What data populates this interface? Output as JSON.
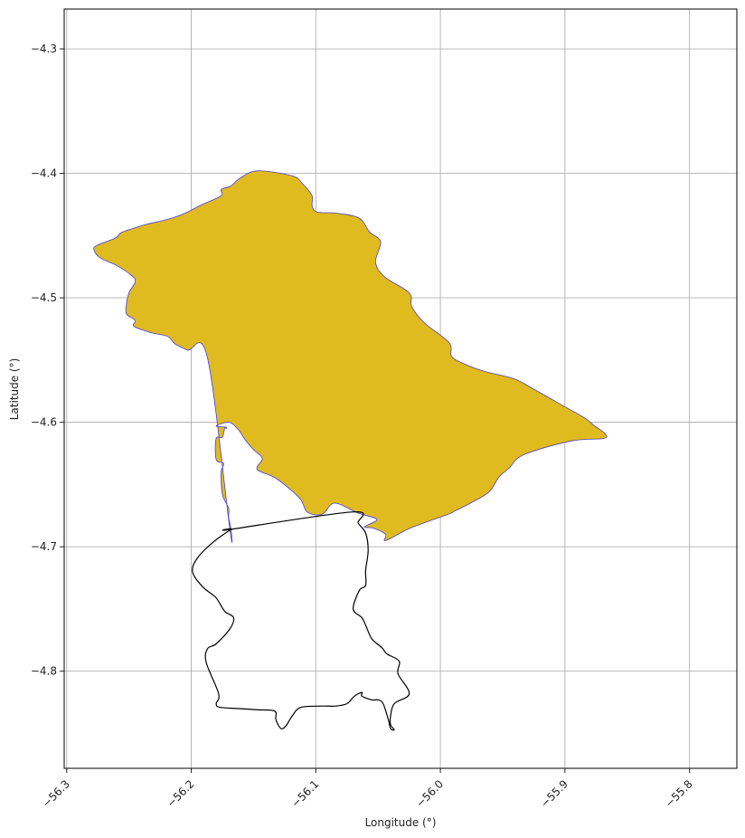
{
  "chart_data": {
    "type": "map",
    "xlabel": "Longitude (°)",
    "ylabel": "Latitude (°)",
    "xlim": [
      -56.302,
      -55.762
    ],
    "ylim": [
      -4.878,
      -4.268
    ],
    "x_ticks": [
      -56.3,
      -56.2,
      -56.1,
      -56.0,
      -55.9,
      -55.8
    ],
    "x_tick_labels": [
      "−56.3",
      "−56.2",
      "−56.1",
      "−56.0",
      "−55.9",
      "−55.8"
    ],
    "y_ticks": [
      -4.3,
      -4.4,
      -4.5,
      -4.6,
      -4.7,
      -4.8
    ],
    "y_tick_labels": [
      "−4.3",
      "−4.4",
      "−4.5",
      "−4.6",
      "−4.7",
      "−4.8"
    ],
    "grid": true,
    "colors": {
      "fill": "#dfbb1f",
      "fill_edge": "#4a3fd0",
      "outline": "#000000"
    },
    "filled_region": {
      "lon": [
        -56.168,
        -56.17,
        -56.17,
        -56.175,
        -56.176,
        -56.174,
        -56.18,
        -56.18,
        -56.175,
        -56.173,
        -56.172,
        -56.172,
        -56.18,
        -56.17,
        -56.163,
        -56.156,
        -56.15,
        -56.143,
        -56.147,
        -56.132,
        -56.113,
        -56.107,
        -56.095,
        -56.085,
        -56.066,
        -56.051,
        -56.061,
        -56.054,
        -56.044,
        -56.044,
        -56.024,
        -55.994,
        -55.988,
        -55.976,
        -55.961,
        -55.953,
        -55.945,
        -55.933,
        -55.895,
        -55.869,
        -55.868,
        -55.876,
        -55.885,
        -55.901,
        -55.924,
        -55.941,
        -55.965,
        -55.981,
        -55.991,
        -55.993,
        -56.013,
        -56.023,
        -56.025,
        -56.045,
        -56.052,
        -56.048,
        -56.057,
        -56.065,
        -56.083,
        -56.099,
        -56.103,
        -56.103,
        -56.111,
        -56.119,
        -56.147,
        -56.161,
        -56.168,
        -56.176,
        -56.176,
        -56.191,
        -56.205,
        -56.219,
        -56.236,
        -56.252,
        -56.257,
        -56.261,
        -56.276,
        -56.278,
        -56.273,
        -56.26,
        -56.248,
        -56.245,
        -56.25,
        -56.252,
        -56.252,
        -56.245,
        -56.246,
        -56.232,
        -56.219,
        -56.213,
        -56.203,
        -56.187,
        -56.169
      ],
      "lat": [
        -4.686,
        -4.676,
        -4.669,
        -4.658,
        -4.64,
        -4.633,
        -4.63,
        -4.613,
        -4.612,
        -4.604,
        -4.605,
        -4.604,
        -4.603,
        -4.6,
        -4.605,
        -4.615,
        -4.622,
        -4.629,
        -4.638,
        -4.645,
        -4.661,
        -4.672,
        -4.674,
        -4.665,
        -4.673,
        -4.678,
        -4.684,
        -4.685,
        -4.69,
        -4.695,
        -4.685,
        -4.674,
        -4.671,
        -4.665,
        -4.656,
        -4.644,
        -4.637,
        -4.626,
        -4.615,
        -4.613,
        -4.609,
        -4.603,
        -4.596,
        -4.587,
        -4.574,
        -4.565,
        -4.559,
        -4.553,
        -4.547,
        -4.536,
        -4.52,
        -4.507,
        -4.496,
        -4.483,
        -4.471,
        -4.455,
        -4.447,
        -4.436,
        -4.432,
        -4.431,
        -4.426,
        -4.418,
        -4.408,
        -4.402,
        -4.398,
        -4.404,
        -4.41,
        -4.413,
        -4.418,
        -4.425,
        -4.432,
        -4.437,
        -4.441,
        -4.446,
        -4.448,
        -4.452,
        -4.458,
        -4.462,
        -4.468,
        -4.474,
        -4.482,
        -4.487,
        -4.496,
        -4.505,
        -4.513,
        -4.518,
        -4.523,
        -4.528,
        -4.531,
        -4.537,
        -4.542,
        -4.548,
        -4.686
      ]
    },
    "outline_region": {
      "lon": [
        -56.168,
        -56.07,
        -56.066,
        -56.06,
        -56.058,
        -56.06,
        -56.06,
        -56.065,
        -56.07,
        -56.063,
        -56.06,
        -56.055,
        -56.047,
        -56.043,
        -56.033,
        -56.034,
        -56.025,
        -56.037,
        -56.04,
        -56.04,
        -56.037,
        -56.04,
        -56.042,
        -56.046,
        -56.05,
        -56.055,
        -56.063,
        -56.063,
        -56.069,
        -56.075,
        -56.084,
        -56.095,
        -56.112,
        -56.119,
        -56.124,
        -56.128,
        -56.132,
        -56.133,
        -56.146,
        -56.162,
        -56.177,
        -56.18,
        -56.178,
        -56.188,
        -56.187,
        -56.18,
        -56.169,
        -56.166,
        -56.173,
        -56.178,
        -56.181,
        -56.191,
        -56.199,
        -56.195,
        -56.182,
        -56.168
      ],
      "lat": [
        -4.686,
        -4.672,
        -4.681,
        -4.689,
        -4.703,
        -4.719,
        -4.731,
        -4.735,
        -4.75,
        -4.757,
        -4.763,
        -4.774,
        -4.781,
        -4.786,
        -4.792,
        -4.802,
        -4.818,
        -4.826,
        -4.836,
        -4.843,
        -4.847,
        -4.846,
        -4.838,
        -4.826,
        -4.823,
        -4.823,
        -4.82,
        -4.817,
        -4.82,
        -4.826,
        -4.828,
        -4.828,
        -4.829,
        -4.836,
        -4.844,
        -4.846,
        -4.839,
        -4.832,
        -4.831,
        -4.83,
        -4.829,
        -4.826,
        -4.818,
        -4.793,
        -4.782,
        -4.778,
        -4.766,
        -4.757,
        -4.752,
        -4.744,
        -4.74,
        -4.732,
        -4.72,
        -4.709,
        -4.696,
        -4.686
      ]
    }
  }
}
